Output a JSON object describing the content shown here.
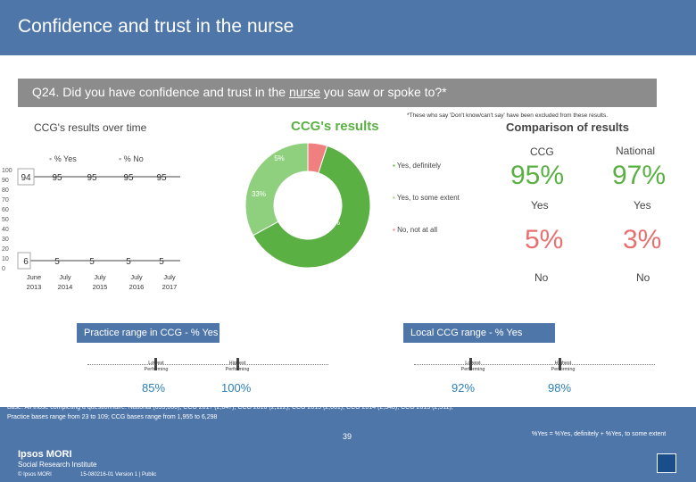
{
  "header": {
    "title": "Confidence and trust in the nurse"
  },
  "question": {
    "prefix": "Q24. Did you have confidence and trust in the ",
    "underlined": "nurse",
    "suffix": " you saw or spoke to?*"
  },
  "note": "*These who say 'Don't know/can't say' have been excluded from these results.",
  "trend": {
    "title": "CCG's results over time",
    "legend_yes": "% Yes",
    "legend_no": "% No",
    "y_ticks": [
      "100",
      "90",
      "80",
      "70",
      "60",
      "50",
      "40",
      "30",
      "20",
      "10",
      "0"
    ],
    "years": [
      "June\n2013",
      "July\n2014",
      "July\n2015",
      "July\n2016",
      "July\n2017"
    ],
    "yes_values": [
      "94",
      "95",
      "95",
      "95",
      "95"
    ],
    "no_values": [
      "6",
      "5",
      "5",
      "5",
      "5"
    ]
  },
  "donut": {
    "title": "CCG's results",
    "legend": [
      "Yes, definitely",
      "Yes, to some extent",
      "No, not at all"
    ],
    "labels": [
      "5%",
      "33%",
      "62%"
    ],
    "colors": [
      "#5ab043",
      "#8fd07e",
      "#f08080"
    ]
  },
  "comparison": {
    "title": "Comparison of results",
    "ccg_label": "CCG",
    "national_label": "National",
    "ccg_yes": "95%",
    "national_yes": "97%",
    "yes_label": "Yes",
    "ccg_no": "5%",
    "national_no": "3%",
    "no_label": "No"
  },
  "practice_range": {
    "title": "Practice range in CCG - % Yes",
    "lowest_label": "Lowest\nPerforming",
    "highest_label": "Highest\nPerforming",
    "lowest_value": "85%",
    "highest_value": "100%"
  },
  "local_range": {
    "title": "Local CCG range - % Yes",
    "lowest_label": "Lowest\nPerforming",
    "highest_label": "Highest\nPerforming",
    "lowest_value": "92%",
    "highest_value": "98%"
  },
  "footer": {
    "base": "Base: All those completing a questionnaire: National (693,060); CCG 2017 (2,047); CCG 2016 (2,112); CCG 2015 (2,061); CCG 2014 (2,348); CCG 2013 (2,511); Practice bases range from 23 to 109; CCG bases range from 1,955 to 6,298",
    "formula": "%Yes = %Yes, definitely + %Yes, to some extent",
    "page": "39",
    "logo_line1": "Ipsos MORI",
    "logo_line2": "Social Research Institute",
    "copyright": "© Ipsos MORI",
    "version": "15-080216-01 Version 1 | Public"
  }
}
